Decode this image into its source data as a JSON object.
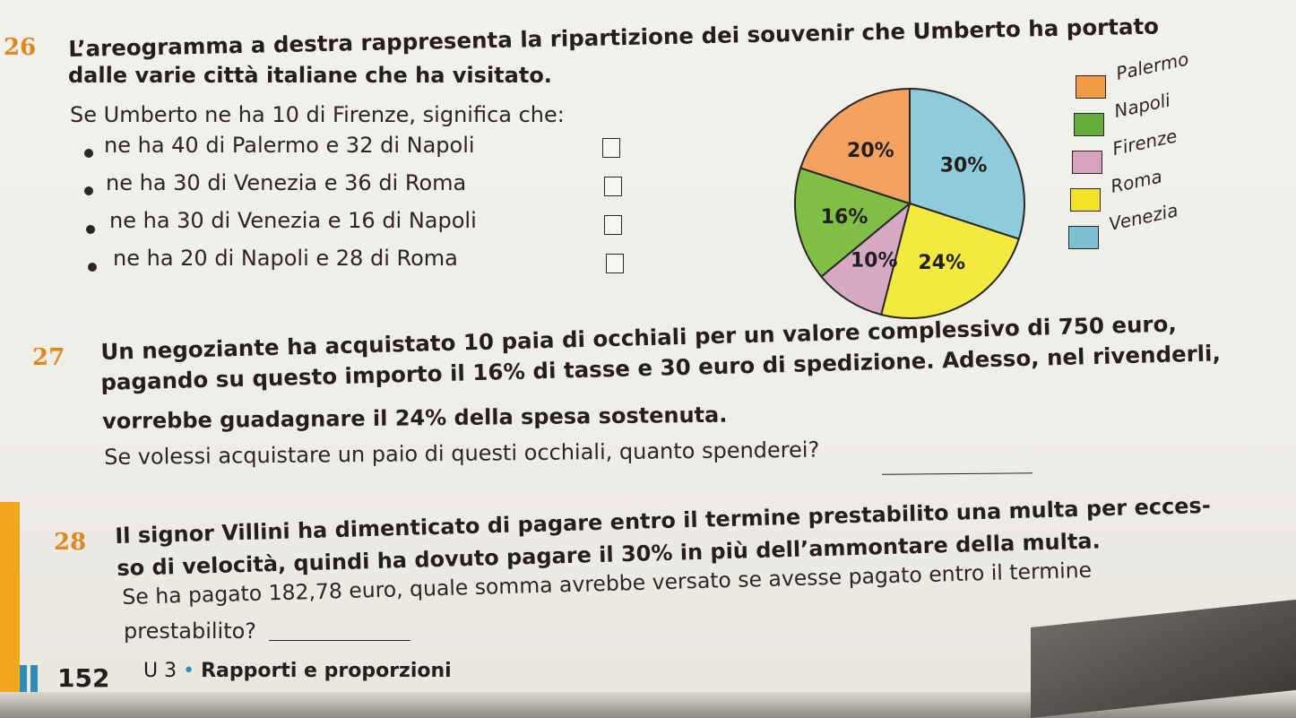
{
  "ex26": {
    "number": "26",
    "title_line1": "L’areogramma a destra rappresenta la ripartizione dei souvenir che Umberto ha portato",
    "title_line2": "dalle varie città italiane che ha visitato.",
    "question": "Se Umberto ne ha 10 di Firenze, significa che:",
    "options": [
      "ne ha 40 di Palermo e 32 di Napoli",
      "ne ha 30 di Venezia e 36 di Roma",
      "ne ha 30 di Venezia e 16 di Napoli",
      "ne ha 20 di Napoli e 28 di Roma"
    ]
  },
  "chart_data": {
    "type": "pie",
    "slices": [
      {
        "label": "Venezia",
        "value": 30,
        "text": "30%",
        "color": "#8ecbdc"
      },
      {
        "label": "Roma",
        "value": 24,
        "text": "24%",
        "color": "#f2ea3e"
      },
      {
        "label": "Firenze",
        "value": 10,
        "text": "10%",
        "color": "#d6a9c4"
      },
      {
        "label": "Napoli",
        "value": 16,
        "text": "16%",
        "color": "#7fbf45"
      },
      {
        "label": "Palermo",
        "value": 20,
        "text": "20%",
        "color": "#f4a262"
      }
    ],
    "legend": [
      {
        "label": "Palermo",
        "color": "#f39a45"
      },
      {
        "label": "Napoli",
        "color": "#67ad3b"
      },
      {
        "label": "Firenze",
        "color": "#d7a3bf"
      },
      {
        "label": "Roma",
        "color": "#f2e228"
      },
      {
        "label": "Venezia",
        "color": "#7dbfd4"
      }
    ],
    "legend_position": "right"
  },
  "ex27": {
    "number": "27",
    "line1": "Un negoziante ha acquistato 10 paia di occhiali per un valore complessivo di 750 euro,",
    "line2": "pagando su questo importo il 16% di tasse e 30 euro di spedizione. Adesso, nel rivenderli,",
    "line3": "vorrebbe guadagnare il 24% della spesa sostenuta.",
    "question": "Se volessi acquistare un paio di questi occhiali, quanto spenderei?"
  },
  "ex28": {
    "number": "28",
    "line1": "Il signor Villini ha dimenticato di pagare entro il termine prestabilito una multa per ecces-",
    "line2": "so di velocità, quindi ha dovuto pagare il 30% in più dell’ammontare della multa.",
    "line3": "Se ha pagato 182,78 euro, quale somma avrebbe versato se avesse pagato entro il termine",
    "line4": "prestabilito?"
  },
  "footer": {
    "page_number": "152",
    "unit": "U 3",
    "section": "Rapporti e proporzioni"
  }
}
